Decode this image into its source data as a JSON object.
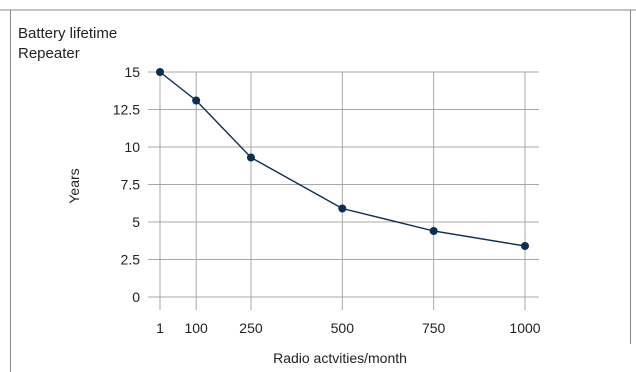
{
  "chart_data": {
    "type": "line",
    "title": "Battery lifetime",
    "subtitle": "Repeater",
    "xlabel": "Radio actvities/month",
    "ylabel": "Years",
    "x_ticks": [
      1,
      100,
      250,
      500,
      750,
      1000
    ],
    "y_ticks": [
      "0",
      "2.5",
      "5",
      "7.5",
      "10",
      "12.5",
      "15"
    ],
    "xlim": [
      1,
      1000
    ],
    "ylim": [
      0,
      15
    ],
    "grid": "vertical and horizontal",
    "series": [
      {
        "x": [
          1,
          100,
          250,
          500,
          750,
          1000
        ],
        "values": [
          15,
          13.1,
          9.3,
          5.9,
          4.4,
          3.4
        ]
      }
    ],
    "colors": {
      "line": "#0d2d52",
      "marker": "#0d2d52",
      "grid": "#a8a8a8",
      "frame": "#888888"
    }
  }
}
